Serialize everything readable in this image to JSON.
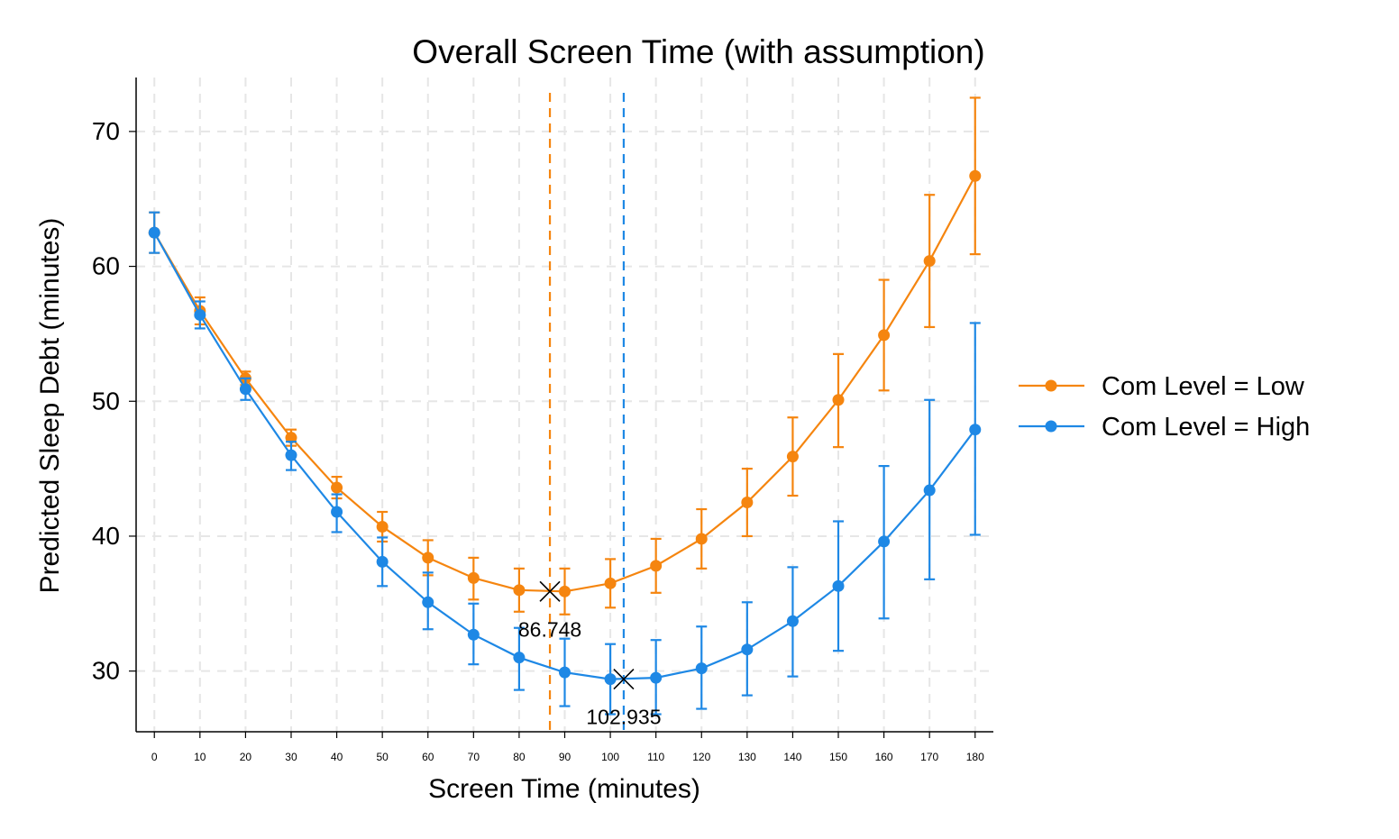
{
  "chart_data": {
    "type": "line",
    "title": "Overall Screen Time (with assumption)",
    "xlabel": "Screen Time (minutes)",
    "ylabel": "Predicted Sleep Debt (minutes)",
    "x": [
      0,
      10,
      20,
      30,
      40,
      50,
      60,
      70,
      80,
      90,
      100,
      110,
      120,
      130,
      140,
      150,
      160,
      170,
      180
    ],
    "x_ticks": [
      "0",
      "10",
      "20",
      "30",
      "40",
      "50",
      "60",
      "70",
      "80",
      "90",
      "100",
      "110",
      "120",
      "130",
      "140",
      "150",
      "160",
      "170",
      "180"
    ],
    "y_ticks": [
      "30",
      "40",
      "50",
      "60",
      "70"
    ],
    "xlim": [
      -4,
      184
    ],
    "ylim": [
      25.5,
      74
    ],
    "grid": true,
    "legend_position": "right",
    "series": [
      {
        "name": "Com Level = Low",
        "color": "#f5850f",
        "values": [
          62.5,
          56.7,
          51.7,
          47.3,
          43.6,
          40.7,
          38.4,
          36.9,
          36.0,
          35.9,
          36.5,
          37.8,
          39.8,
          42.5,
          45.9,
          50.1,
          54.9,
          60.4,
          66.7
        ],
        "lower": [
          61.0,
          55.7,
          51.2,
          46.7,
          42.8,
          39.6,
          37.1,
          35.3,
          34.4,
          34.2,
          34.7,
          35.8,
          37.6,
          40.0,
          43.0,
          46.6,
          50.8,
          55.5,
          60.9
        ],
        "upper": [
          64.0,
          57.7,
          52.2,
          47.9,
          44.4,
          41.8,
          39.7,
          38.4,
          37.6,
          37.6,
          38.3,
          39.8,
          42.0,
          45.0,
          48.8,
          53.5,
          59.0,
          65.3,
          72.5
        ]
      },
      {
        "name": "Com Level = High",
        "color": "#1e88e5",
        "values": [
          62.5,
          56.4,
          50.9,
          46.0,
          41.8,
          38.1,
          35.1,
          32.7,
          31.0,
          29.9,
          29.4,
          29.5,
          30.2,
          31.6,
          33.7,
          36.3,
          39.6,
          43.4,
          47.9
        ],
        "lower": [
          61.0,
          55.4,
          50.1,
          44.9,
          40.3,
          36.3,
          33.1,
          30.5,
          28.6,
          27.4,
          26.8,
          26.8,
          27.2,
          28.2,
          29.6,
          31.5,
          33.9,
          36.8,
          40.1
        ],
        "upper": [
          64.0,
          57.4,
          51.7,
          47.0,
          43.1,
          39.9,
          37.3,
          35.0,
          33.2,
          32.4,
          32.0,
          32.3,
          33.3,
          35.1,
          37.7,
          41.1,
          45.2,
          50.1,
          55.8
        ]
      }
    ],
    "vertical_lines": [
      {
        "x": 86.748,
        "color": "#f5850f",
        "series": "Com Level = Low"
      },
      {
        "x": 102.935,
        "color": "#1e88e5",
        "series": "Com Level = High"
      }
    ],
    "annotations": [
      {
        "x": 86.748,
        "y": 35.9,
        "text": "86.748",
        "marker": "x"
      },
      {
        "x": 102.935,
        "y": 29.4,
        "text": "102.935",
        "marker": "x"
      }
    ]
  }
}
